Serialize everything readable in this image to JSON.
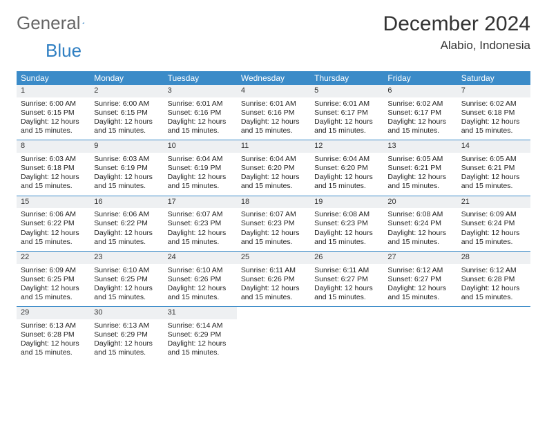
{
  "brand": {
    "word1": "General",
    "word2": "Blue"
  },
  "header": {
    "title": "December 2024",
    "location": "Alabio, Indonesia"
  },
  "colors": {
    "header_bg": "#3b8bc8",
    "header_text": "#ffffff",
    "daynum_bg": "#eef0f2",
    "border": "#3b8bc8",
    "brand_blue": "#2f7fc2",
    "brand_gray": "#666666",
    "page_bg": "#ffffff"
  },
  "weekdays": [
    "Sunday",
    "Monday",
    "Tuesday",
    "Wednesday",
    "Thursday",
    "Friday",
    "Saturday"
  ],
  "daylight_text": "Daylight: 12 hours and 15 minutes.",
  "days": [
    {
      "num": "1",
      "sunrise": "6:00 AM",
      "sunset": "6:15 PM"
    },
    {
      "num": "2",
      "sunrise": "6:00 AM",
      "sunset": "6:15 PM"
    },
    {
      "num": "3",
      "sunrise": "6:01 AM",
      "sunset": "6:16 PM"
    },
    {
      "num": "4",
      "sunrise": "6:01 AM",
      "sunset": "6:16 PM"
    },
    {
      "num": "5",
      "sunrise": "6:01 AM",
      "sunset": "6:17 PM"
    },
    {
      "num": "6",
      "sunrise": "6:02 AM",
      "sunset": "6:17 PM"
    },
    {
      "num": "7",
      "sunrise": "6:02 AM",
      "sunset": "6:18 PM"
    },
    {
      "num": "8",
      "sunrise": "6:03 AM",
      "sunset": "6:18 PM"
    },
    {
      "num": "9",
      "sunrise": "6:03 AM",
      "sunset": "6:19 PM"
    },
    {
      "num": "10",
      "sunrise": "6:04 AM",
      "sunset": "6:19 PM"
    },
    {
      "num": "11",
      "sunrise": "6:04 AM",
      "sunset": "6:20 PM"
    },
    {
      "num": "12",
      "sunrise": "6:04 AM",
      "sunset": "6:20 PM"
    },
    {
      "num": "13",
      "sunrise": "6:05 AM",
      "sunset": "6:21 PM"
    },
    {
      "num": "14",
      "sunrise": "6:05 AM",
      "sunset": "6:21 PM"
    },
    {
      "num": "15",
      "sunrise": "6:06 AM",
      "sunset": "6:22 PM"
    },
    {
      "num": "16",
      "sunrise": "6:06 AM",
      "sunset": "6:22 PM"
    },
    {
      "num": "17",
      "sunrise": "6:07 AM",
      "sunset": "6:23 PM"
    },
    {
      "num": "18",
      "sunrise": "6:07 AM",
      "sunset": "6:23 PM"
    },
    {
      "num": "19",
      "sunrise": "6:08 AM",
      "sunset": "6:23 PM"
    },
    {
      "num": "20",
      "sunrise": "6:08 AM",
      "sunset": "6:24 PM"
    },
    {
      "num": "21",
      "sunrise": "6:09 AM",
      "sunset": "6:24 PM"
    },
    {
      "num": "22",
      "sunrise": "6:09 AM",
      "sunset": "6:25 PM"
    },
    {
      "num": "23",
      "sunrise": "6:10 AM",
      "sunset": "6:25 PM"
    },
    {
      "num": "24",
      "sunrise": "6:10 AM",
      "sunset": "6:26 PM"
    },
    {
      "num": "25",
      "sunrise": "6:11 AM",
      "sunset": "6:26 PM"
    },
    {
      "num": "26",
      "sunrise": "6:11 AM",
      "sunset": "6:27 PM"
    },
    {
      "num": "27",
      "sunrise": "6:12 AM",
      "sunset": "6:27 PM"
    },
    {
      "num": "28",
      "sunrise": "6:12 AM",
      "sunset": "6:28 PM"
    },
    {
      "num": "29",
      "sunrise": "6:13 AM",
      "sunset": "6:28 PM"
    },
    {
      "num": "30",
      "sunrise": "6:13 AM",
      "sunset": "6:29 PM"
    },
    {
      "num": "31",
      "sunrise": "6:14 AM",
      "sunset": "6:29 PM"
    }
  ]
}
